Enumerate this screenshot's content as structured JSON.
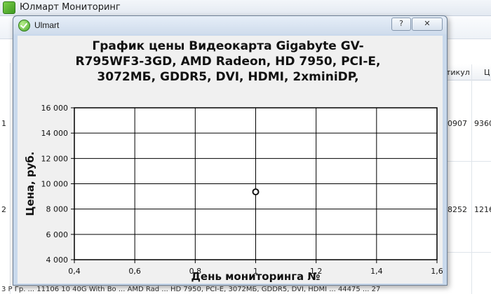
{
  "main_window": {
    "title": "Юлмарт Мониторинг",
    "column_article": "тикул",
    "column_price_short": "Ц",
    "row1_article": "0907",
    "row1_price": "9360",
    "row2_article": "8252",
    "row2_price": "1216",
    "row1_number": "1",
    "row2_number": "2",
    "bottom_row_text": "3  Р          Гр. ...  11106 10 40G  With Bo ... AMD Rad ... HD 7950, PCI-E, 3072MБ, GDDR5, DVI, HDMI ... 44475 ... 27"
  },
  "dialog": {
    "title": "Ulmart",
    "help_label": "?",
    "close_label": "✕"
  },
  "icons": {
    "app": "app-check-icon",
    "dialog": "ulmart-check-icon",
    "help": "help-icon",
    "close": "close-icon"
  },
  "chart_data": {
    "type": "scatter",
    "title_lines": [
      "График цены Видеокарта Gigabyte GV-",
      "R795WF3-3GD, AMD Radeon, HD 7950, PCI-E,",
      "3072МБ, GDDR5, DVI, HDMI, 2xminiDP,"
    ],
    "xlabel": "День мониторинга №",
    "ylabel": "Цена, руб.",
    "xlim": [
      0.4,
      1.6
    ],
    "ylim": [
      4000,
      16000
    ],
    "x_ticks": [
      0.4,
      0.6,
      0.8,
      1.0,
      1.2,
      1.4,
      1.6
    ],
    "x_tick_labels": [
      "0,4",
      "0,6",
      "0,8",
      "1",
      "1,2",
      "1,4",
      "1,6"
    ],
    "y_ticks": [
      4000,
      6000,
      8000,
      10000,
      12000,
      14000,
      16000
    ],
    "y_tick_labels": [
      "4 000",
      "6 000",
      "8 000",
      "10 000",
      "12 000",
      "14 000",
      "16 000"
    ],
    "grid": true,
    "points": [
      {
        "x": 1,
        "y": 9360
      }
    ],
    "colors": {
      "point_stroke": "#111111",
      "point_fill": "#ffffff",
      "grid": "#000000"
    }
  }
}
